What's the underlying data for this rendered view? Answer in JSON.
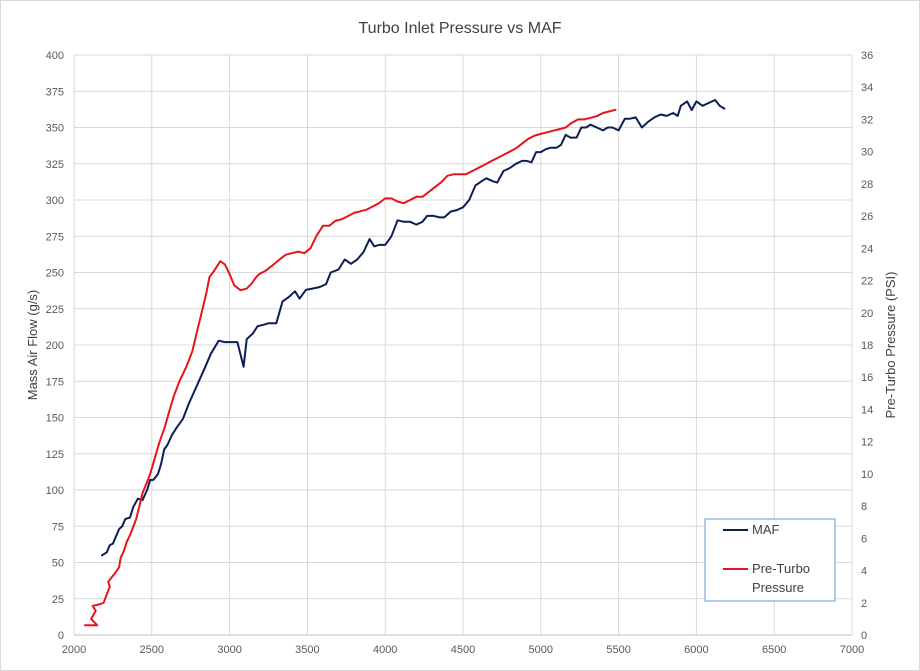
{
  "chart_data": {
    "type": "line",
    "title": "Turbo Inlet Pressure vs MAF",
    "xlabel": "",
    "ylabel": "Mass Air Flow (g/s)",
    "y2label": "Pre-Turbo Pressure (PSI)",
    "xlim": [
      2000,
      7000
    ],
    "ylim": [
      0,
      400
    ],
    "y2lim": [
      0,
      36
    ],
    "grid": true,
    "legend_position": "bottom-right",
    "x_ticks": [
      "2000",
      "2500",
      "3000",
      "3500",
      "4000",
      "4500",
      "5000",
      "5500",
      "6000",
      "6500",
      "7000"
    ],
    "y_ticks": [
      "0",
      "25",
      "50",
      "75",
      "100",
      "125",
      "150",
      "175",
      "200",
      "225",
      "250",
      "275",
      "300",
      "325",
      "350",
      "375",
      "400"
    ],
    "y2_ticks": [
      "0",
      "2",
      "4",
      "6",
      "8",
      "10",
      "12",
      "14",
      "16",
      "18",
      "20",
      "22",
      "24",
      "26",
      "28",
      "30",
      "32",
      "34",
      "36"
    ],
    "series": [
      {
        "name": "MAF",
        "axis": "left",
        "color": "#0d1e57",
        "points": [
          [
            2180,
            55
          ],
          [
            2210,
            57
          ],
          [
            2230,
            62
          ],
          [
            2250,
            63
          ],
          [
            2270,
            68
          ],
          [
            2290,
            73
          ],
          [
            2310,
            75
          ],
          [
            2330,
            80
          ],
          [
            2360,
            81
          ],
          [
            2380,
            88
          ],
          [
            2410,
            94
          ],
          [
            2440,
            93
          ],
          [
            2470,
            100
          ],
          [
            2490,
            107
          ],
          [
            2510,
            107
          ],
          [
            2540,
            111
          ],
          [
            2560,
            118
          ],
          [
            2580,
            128
          ],
          [
            2600,
            131
          ],
          [
            2630,
            138
          ],
          [
            2660,
            143
          ],
          [
            2700,
            149
          ],
          [
            2740,
            160
          ],
          [
            2790,
            172
          ],
          [
            2840,
            184
          ],
          [
            2880,
            194
          ],
          [
            2930,
            203
          ],
          [
            2970,
            202
          ],
          [
            3000,
            202
          ],
          [
            3050,
            202
          ],
          [
            3090,
            185
          ],
          [
            3110,
            204
          ],
          [
            3150,
            208
          ],
          [
            3180,
            213
          ],
          [
            3220,
            214
          ],
          [
            3250,
            215
          ],
          [
            3300,
            215
          ],
          [
            3340,
            230
          ],
          [
            3380,
            233
          ],
          [
            3420,
            237
          ],
          [
            3450,
            232
          ],
          [
            3490,
            238
          ],
          [
            3540,
            239
          ],
          [
            3580,
            240
          ],
          [
            3620,
            242
          ],
          [
            3650,
            250
          ],
          [
            3700,
            252
          ],
          [
            3740,
            259
          ],
          [
            3780,
            256
          ],
          [
            3820,
            259
          ],
          [
            3860,
            264
          ],
          [
            3900,
            273
          ],
          [
            3930,
            268
          ],
          [
            3960,
            269
          ],
          [
            4000,
            269
          ],
          [
            4040,
            275
          ],
          [
            4080,
            286
          ],
          [
            4120,
            285
          ],
          [
            4160,
            285
          ],
          [
            4200,
            283
          ],
          [
            4240,
            285
          ],
          [
            4270,
            289
          ],
          [
            4310,
            289
          ],
          [
            4350,
            288
          ],
          [
            4380,
            288
          ],
          [
            4420,
            292
          ],
          [
            4460,
            293
          ],
          [
            4500,
            295
          ],
          [
            4540,
            300
          ],
          [
            4580,
            310
          ],
          [
            4620,
            313
          ],
          [
            4650,
            315
          ],
          [
            4690,
            313
          ],
          [
            4720,
            312
          ],
          [
            4760,
            320
          ],
          [
            4800,
            322
          ],
          [
            4840,
            325
          ],
          [
            4880,
            327
          ],
          [
            4910,
            327
          ],
          [
            4940,
            326
          ],
          [
            4970,
            333
          ],
          [
            5000,
            333
          ],
          [
            5030,
            335
          ],
          [
            5060,
            336
          ],
          [
            5100,
            336
          ],
          [
            5130,
            338
          ],
          [
            5160,
            345
          ],
          [
            5190,
            343
          ],
          [
            5230,
            343
          ],
          [
            5260,
            350
          ],
          [
            5290,
            350
          ],
          [
            5320,
            352
          ],
          [
            5360,
            350
          ],
          [
            5400,
            348
          ],
          [
            5430,
            350
          ],
          [
            5460,
            350
          ],
          [
            5500,
            348
          ],
          [
            5540,
            356
          ],
          [
            5570,
            356
          ],
          [
            5610,
            357
          ],
          [
            5650,
            350
          ],
          [
            5690,
            354
          ],
          [
            5730,
            357
          ],
          [
            5770,
            359
          ],
          [
            5810,
            358
          ],
          [
            5850,
            360
          ],
          [
            5880,
            358
          ],
          [
            5900,
            365
          ],
          [
            5940,
            368
          ],
          [
            5970,
            362
          ],
          [
            6000,
            368
          ],
          [
            6040,
            365
          ],
          [
            6080,
            367
          ],
          [
            6120,
            369
          ],
          [
            6150,
            365
          ],
          [
            6180,
            363
          ]
        ]
      },
      {
        "name": "Pre-Turbo Pressure",
        "axis": "right",
        "color": "#e8141b",
        "points": [
          [
            2070,
            0.6
          ],
          [
            2120,
            0.6
          ],
          [
            2150,
            0.6
          ],
          [
            2110,
            1.0
          ],
          [
            2140,
            1.5
          ],
          [
            2120,
            1.8
          ],
          [
            2160,
            1.9
          ],
          [
            2190,
            2.0
          ],
          [
            2210,
            2.5
          ],
          [
            2230,
            3.0
          ],
          [
            2220,
            3.3
          ],
          [
            2260,
            3.8
          ],
          [
            2290,
            4.2
          ],
          [
            2300,
            4.8
          ],
          [
            2320,
            5.2
          ],
          [
            2340,
            5.8
          ],
          [
            2360,
            6.2
          ],
          [
            2380,
            6.7
          ],
          [
            2400,
            7.2
          ],
          [
            2420,
            8.0
          ],
          [
            2440,
            8.8
          ],
          [
            2470,
            9.5
          ],
          [
            2490,
            10.0
          ],
          [
            2520,
            11.0
          ],
          [
            2550,
            12.0
          ],
          [
            2580,
            12.8
          ],
          [
            2610,
            13.8
          ],
          [
            2640,
            14.8
          ],
          [
            2680,
            15.8
          ],
          [
            2720,
            16.6
          ],
          [
            2760,
            17.6
          ],
          [
            2790,
            18.8
          ],
          [
            2820,
            20.0
          ],
          [
            2850,
            21.2
          ],
          [
            2870,
            22.2
          ],
          [
            2900,
            22.6
          ],
          [
            2940,
            23.2
          ],
          [
            2970,
            23.0
          ],
          [
            3000,
            22.4
          ],
          [
            3030,
            21.7
          ],
          [
            3070,
            21.4
          ],
          [
            3110,
            21.5
          ],
          [
            3140,
            21.8
          ],
          [
            3170,
            22.2
          ],
          [
            3190,
            22.4
          ],
          [
            3230,
            22.6
          ],
          [
            3270,
            22.9
          ],
          [
            3320,
            23.3
          ],
          [
            3360,
            23.6
          ],
          [
            3400,
            23.7
          ],
          [
            3440,
            23.8
          ],
          [
            3480,
            23.7
          ],
          [
            3520,
            24.0
          ],
          [
            3560,
            24.8
          ],
          [
            3600,
            25.4
          ],
          [
            3640,
            25.4
          ],
          [
            3680,
            25.7
          ],
          [
            3720,
            25.8
          ],
          [
            3760,
            26.0
          ],
          [
            3800,
            26.2
          ],
          [
            3840,
            26.3
          ],
          [
            3880,
            26.4
          ],
          [
            3920,
            26.6
          ],
          [
            3960,
            26.8
          ],
          [
            4000,
            27.1
          ],
          [
            4040,
            27.1
          ],
          [
            4080,
            26.9
          ],
          [
            4120,
            26.8
          ],
          [
            4160,
            27.0
          ],
          [
            4200,
            27.2
          ],
          [
            4240,
            27.2
          ],
          [
            4280,
            27.5
          ],
          [
            4320,
            27.8
          ],
          [
            4360,
            28.1
          ],
          [
            4400,
            28.5
          ],
          [
            4440,
            28.6
          ],
          [
            4480,
            28.6
          ],
          [
            4520,
            28.6
          ],
          [
            4560,
            28.8
          ],
          [
            4600,
            29.0
          ],
          [
            4640,
            29.2
          ],
          [
            4680,
            29.4
          ],
          [
            4720,
            29.6
          ],
          [
            4760,
            29.8
          ],
          [
            4800,
            30.0
          ],
          [
            4840,
            30.2
          ],
          [
            4880,
            30.5
          ],
          [
            4920,
            30.8
          ],
          [
            4960,
            31.0
          ],
          [
            5000,
            31.1
          ],
          [
            5040,
            31.2
          ],
          [
            5080,
            31.3
          ],
          [
            5120,
            31.4
          ],
          [
            5160,
            31.5
          ],
          [
            5200,
            31.8
          ],
          [
            5240,
            32.0
          ],
          [
            5280,
            32.0
          ],
          [
            5320,
            32.1
          ],
          [
            5360,
            32.2
          ],
          [
            5400,
            32.4
          ],
          [
            5440,
            32.5
          ],
          [
            5480,
            32.6
          ]
        ]
      }
    ]
  }
}
